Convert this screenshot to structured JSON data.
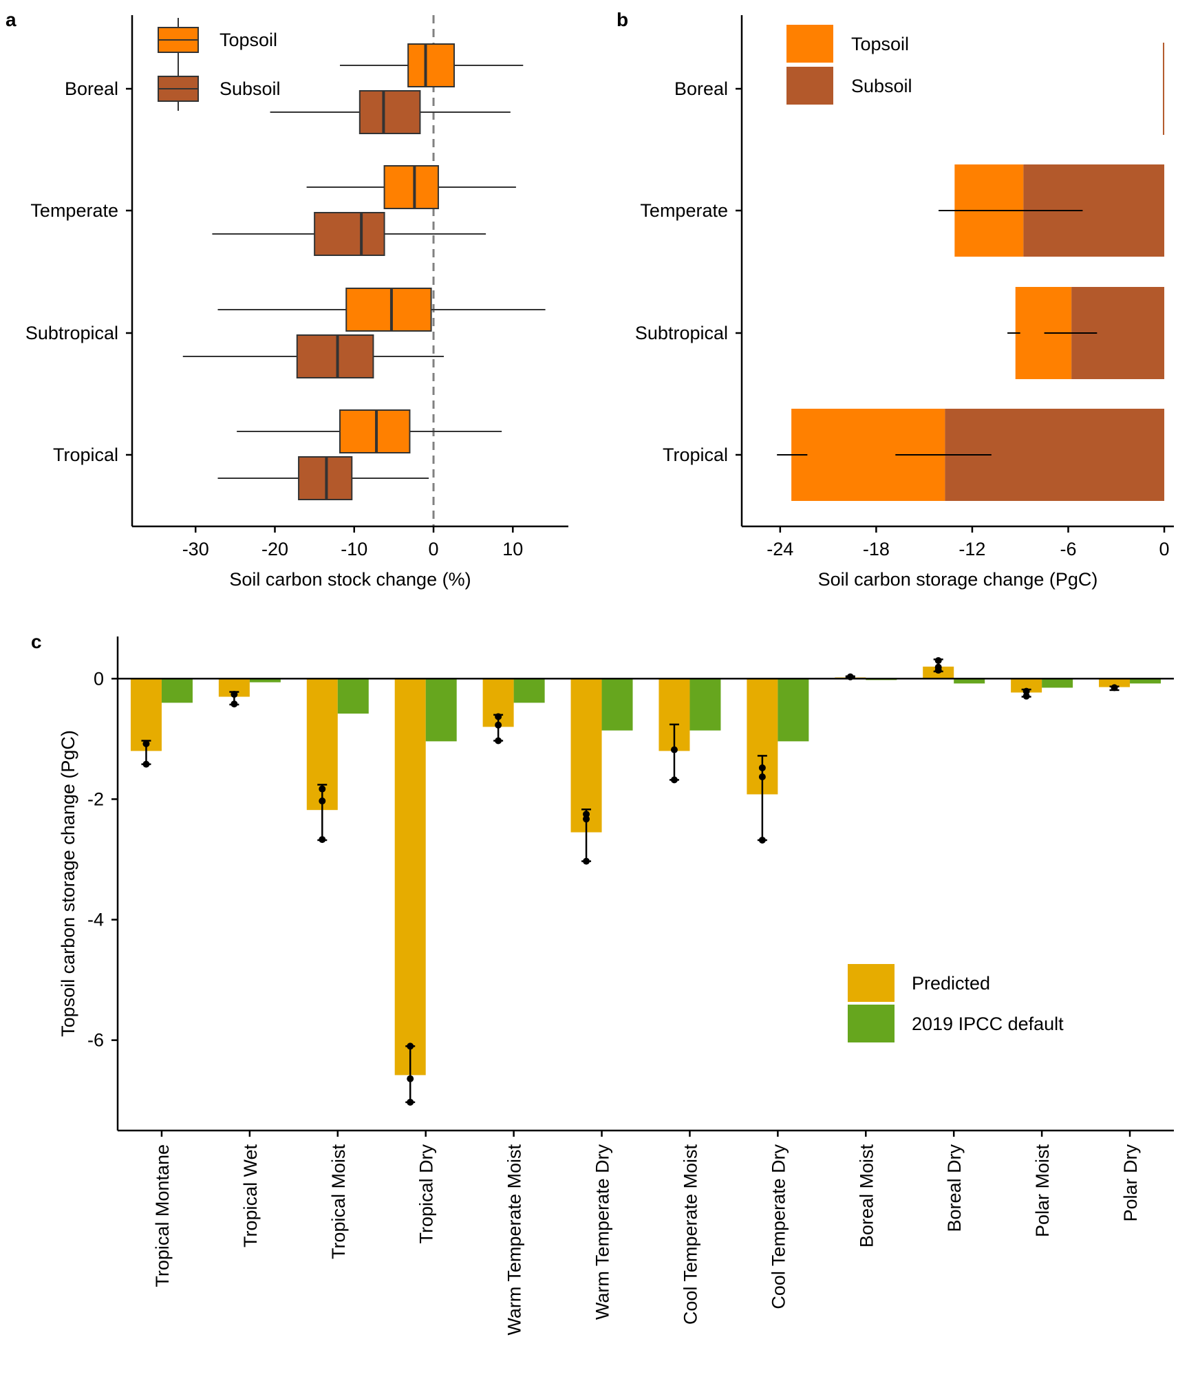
{
  "colors": {
    "topsoil": "#FF8000",
    "subsoil": "#B3592B",
    "predicted": "#E6AC00",
    "ipcc": "#66A61E"
  },
  "chart_data": [
    {
      "panel": "a",
      "type": "box",
      "xlabel": "Soil carbon stock change (%)",
      "xlim": [
        -38,
        17
      ],
      "xticks": [
        -30,
        -20,
        -10,
        0,
        10
      ],
      "reference_line": 0,
      "categories": [
        "Boreal",
        "Temperate",
        "Subtropical",
        "Tropical"
      ],
      "legend": [
        "Topsoil",
        "Subsoil"
      ],
      "legend_position": "top-left",
      "series": [
        {
          "name": "Topsoil",
          "color": "#FF8000",
          "boxes": [
            {
              "min": -11.8,
              "q1": -3.2,
              "median": -1.0,
              "q3": 2.6,
              "max": 11.3
            },
            {
              "min": -16.0,
              "q1": -6.2,
              "median": -2.4,
              "q3": 0.6,
              "max": 10.4
            },
            {
              "min": -27.2,
              "q1": -11.0,
              "median": -5.3,
              "q3": -0.3,
              "max": 14.1
            },
            {
              "min": -24.8,
              "q1": -11.8,
              "median": -7.2,
              "q3": -3.0,
              "max": 8.6
            }
          ]
        },
        {
          "name": "Subsoil",
          "color": "#B3592B",
          "boxes": [
            {
              "min": -20.6,
              "q1": -9.3,
              "median": -6.3,
              "q3": -1.7,
              "max": 9.7
            },
            {
              "min": -27.9,
              "q1": -15.0,
              "median": -9.1,
              "q3": -6.2,
              "max": 6.6
            },
            {
              "min": -31.6,
              "q1": -17.2,
              "median": -12.1,
              "q3": -7.6,
              "max": 1.3
            },
            {
              "min": -27.2,
              "q1": -17.0,
              "median": -13.5,
              "q3": -10.3,
              "max": -0.6
            }
          ]
        }
      ]
    },
    {
      "panel": "b",
      "type": "bar",
      "orientation": "horizontal",
      "stacked": true,
      "xlabel": "Soil carbon storage change (PgC)",
      "xlim": [
        -26.4,
        0.6
      ],
      "xticks": [
        -24,
        -18,
        -12,
        -6,
        0
      ],
      "categories": [
        "Boreal",
        "Temperate",
        "Subtropical",
        "Tropical"
      ],
      "legend": [
        "Topsoil",
        "Subsoil"
      ],
      "legend_position": "top-left",
      "series": [
        {
          "name": "Subsoil",
          "color": "#B3592B",
          "values": [
            -0.05,
            -8.8,
            -5.8,
            -13.7
          ]
        },
        {
          "name": "Topsoil",
          "color": "#FF8000",
          "values": [
            0,
            -4.3,
            -3.5,
            -9.6
          ]
        }
      ],
      "error_bars": [
        {
          "category": "Temperate",
          "segments": [
            [
              -14.1,
              -5.1
            ]
          ]
        },
        {
          "category": "Subtropical",
          "segments": [
            [
              -9.8,
              -9.0
            ],
            [
              -7.5,
              -4.2
            ]
          ]
        },
        {
          "category": "Tropical",
          "segments": [
            [
              -24.2,
              -22.3
            ],
            [
              -16.8,
              -10.8
            ]
          ]
        }
      ]
    },
    {
      "panel": "c",
      "type": "bar",
      "ylabel": "Topsoil carbon storage change (PgC)",
      "ylim": [
        -7.5,
        0.7
      ],
      "yticks": [
        0,
        -2,
        -4,
        -6
      ],
      "categories": [
        "Tropical Montane",
        "Tropical Wet",
        "Tropical Moist",
        "Tropical Dry",
        "Warm Temperate Moist",
        "Warm Temperate Dry",
        "Cool Temperate Moist",
        "Cool Temperate Dry",
        "Boreal Moist",
        "Boreal Dry",
        "Polar Moist",
        "Polar Dry"
      ],
      "legend_position": "bottom-right",
      "series": [
        {
          "name": "Predicted",
          "color": "#E6AC00",
          "values": [
            -1.2,
            -0.3,
            -2.18,
            -6.58,
            -0.8,
            -2.55,
            -1.2,
            -1.92,
            0.02,
            0.2,
            -0.23,
            -0.14
          ]
        },
        {
          "name": "2019 IPCC default",
          "color": "#66A61E",
          "values": [
            -0.4,
            -0.06,
            -0.58,
            -1.04,
            -0.4,
            -0.86,
            -0.86,
            -1.04,
            -0.02,
            -0.08,
            -0.15,
            -0.08
          ]
        }
      ],
      "error_bars": [
        {
          "low": -1.42,
          "high": -1.03,
          "points": [
            -1.08,
            -1.42
          ]
        },
        {
          "low": -0.43,
          "high": -0.22,
          "points": [
            -0.26,
            -0.42
          ]
        },
        {
          "low": -2.68,
          "high": -1.76,
          "points": [
            -1.83,
            -2.03,
            -2.67
          ]
        },
        {
          "low": -7.03,
          "high": -6.1,
          "points": [
            -6.1,
            -6.64,
            -7.03
          ]
        },
        {
          "low": -1.03,
          "high": -0.6,
          "points": [
            -0.63,
            -0.77,
            -1.03
          ]
        },
        {
          "low": -3.03,
          "high": -2.17,
          "points": [
            -2.25,
            -2.33,
            -3.03
          ]
        },
        {
          "low": -1.68,
          "high": -0.76,
          "points": [
            -1.18,
            -1.68
          ]
        },
        {
          "low": -2.68,
          "high": -1.28,
          "points": [
            -1.48,
            -1.63,
            -2.68
          ]
        },
        {
          "low": 0.02,
          "high": 0.04,
          "points": [
            0.03
          ]
        },
        {
          "low": 0.12,
          "high": 0.32,
          "points": [
            0.14,
            0.19,
            0.3
          ]
        },
        {
          "low": -0.3,
          "high": -0.18,
          "points": [
            -0.21,
            -0.29
          ]
        },
        {
          "low": -0.19,
          "high": -0.13,
          "points": [
            -0.15
          ]
        }
      ]
    }
  ],
  "panels": {
    "a": "a",
    "b": "b",
    "c": "c"
  },
  "ticklabels": {
    "a": [
      "-30",
      "-20",
      "-10",
      "0",
      "10"
    ],
    "b": [
      "-24",
      "-18",
      "-12",
      "-6",
      "0"
    ],
    "c": [
      "0",
      "-2",
      "-4",
      "-6"
    ]
  }
}
